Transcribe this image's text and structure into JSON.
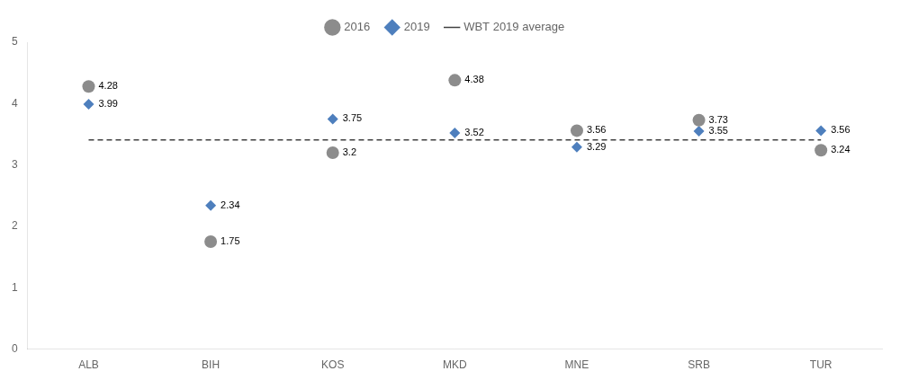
{
  "chart_data": {
    "type": "scatter",
    "categories": [
      "ALB",
      "BIH",
      "KOS",
      "MKD",
      "MNE",
      "SRB",
      "TUR"
    ],
    "series": [
      {
        "name": "2016",
        "color": "#8c8c8c",
        "marker": "circle",
        "values": [
          4.28,
          1.75,
          3.2,
          4.38,
          3.56,
          3.73,
          3.24
        ]
      },
      {
        "name": "2019",
        "color": "#4e7fbd",
        "marker": "diamond",
        "values": [
          3.99,
          2.34,
          3.75,
          3.52,
          3.29,
          3.55,
          3.56
        ]
      },
      {
        "name": "WBT 2019 average",
        "type": "line",
        "color": "#404040",
        "line_style": "dashed",
        "values": [
          3.41,
          3.41,
          3.41,
          3.41,
          3.41,
          3.41,
          3.41
        ]
      }
    ],
    "ylim": [
      0,
      5
    ],
    "yticks": [
      0,
      1,
      2,
      3,
      4,
      5
    ],
    "grid": false,
    "legend": "top",
    "data_labels": true
  }
}
